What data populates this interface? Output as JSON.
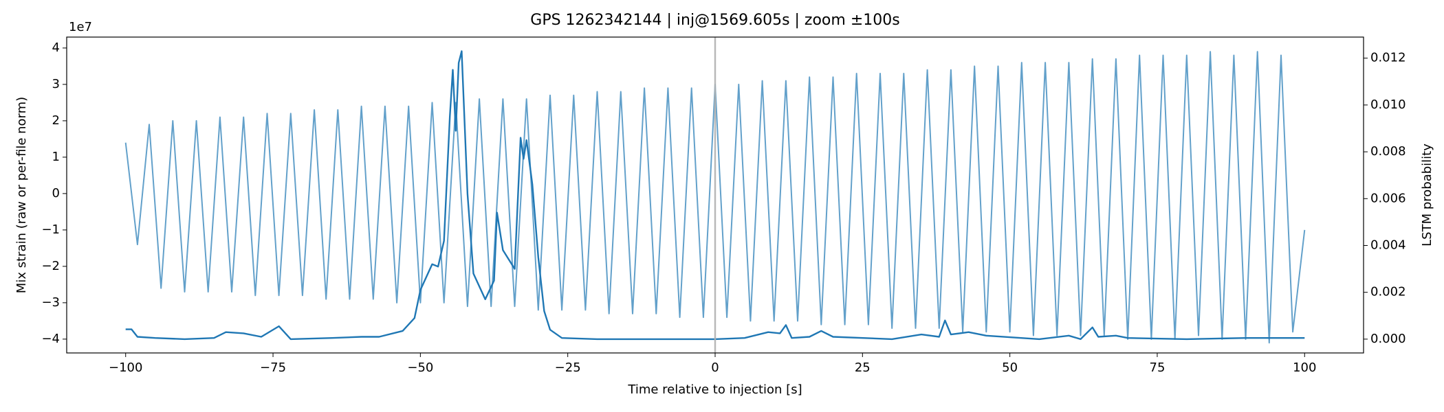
{
  "chart_data": {
    "type": "line",
    "title": "GPS 1262342144 | inj@1569.605s | zoom ±100s",
    "x_label": "Time relative to injection [s]",
    "y_label": "Mix strain (raw or per-file norm)",
    "y2_label": "LSTM probability",
    "y_offset_label": "1e7",
    "xlim": [
      -110,
      110
    ],
    "xticks": [
      {
        "value": -100,
        "label": "−100"
      },
      {
        "value": -75,
        "label": "−75"
      },
      {
        "value": -50,
        "label": "−50"
      },
      {
        "value": -25,
        "label": "−25"
      },
      0,
      25,
      50,
      75,
      100
    ],
    "ylim": [
      -4.38,
      4.3
    ],
    "yticks": [
      {
        "value": -4,
        "label": "−4"
      },
      {
        "value": -3,
        "label": "−3"
      },
      {
        "value": -2,
        "label": "−2"
      },
      {
        "value": -1,
        "label": "−1"
      },
      0,
      1,
      2,
      3,
      4
    ],
    "y2lim": [
      -0.00059,
      0.0129
    ],
    "y2ticks": [
      {
        "value": 0,
        "label": "0.000"
      },
      {
        "value": 0.002,
        "label": "0.002"
      },
      {
        "value": 0.004,
        "label": "0.004"
      },
      {
        "value": 0.006,
        "label": "0.006"
      },
      {
        "value": 0.008,
        "label": "0.008"
      },
      {
        "value": 0.01,
        "label": "0.010"
      },
      {
        "value": 0.012,
        "label": "0.012"
      }
    ],
    "vline": 0,
    "vline_color": "#b0b0b0",
    "series": [
      {
        "name": "strain",
        "color": "#1f77b4",
        "opacity": 0.7,
        "axis": "y",
        "x": [
          -100,
          -98,
          -96,
          -94,
          -92,
          -90,
          -88,
          -86,
          -84,
          -82,
          -80,
          -78,
          -76,
          -74,
          -72,
          -70,
          -68,
          -66,
          -64,
          -62,
          -60,
          -58,
          -56,
          -54,
          -52,
          -50,
          -48,
          -46,
          -44,
          -42,
          -40,
          -38,
          -36,
          -34,
          -32,
          -30,
          -28,
          -26,
          -24,
          -22,
          -20,
          -18,
          -16,
          -14,
          -12,
          -10,
          -8,
          -6,
          -4,
          -2,
          0,
          2,
          4,
          6,
          8,
          10,
          12,
          14,
          16,
          18,
          20,
          22,
          24,
          26,
          28,
          30,
          32,
          34,
          36,
          38,
          40,
          42,
          44,
          46,
          48,
          50,
          52,
          54,
          56,
          58,
          60,
          62,
          64,
          66,
          68,
          70,
          72,
          74,
          76,
          78,
          80,
          82,
          84,
          86,
          88,
          90,
          92,
          94,
          96,
          98,
          100
        ],
        "values": [
          1.4,
          -1.4,
          1.9,
          -2.6,
          2.0,
          -2.7,
          2.0,
          -2.7,
          2.1,
          -2.7,
          2.1,
          -2.8,
          2.2,
          -2.8,
          2.2,
          -2.8,
          2.3,
          -2.9,
          2.3,
          -2.9,
          2.4,
          -2.9,
          2.4,
          -3.0,
          2.4,
          -3.0,
          2.5,
          -3.0,
          2.5,
          -3.1,
          2.6,
          -3.1,
          2.6,
          -3.1,
          2.6,
          -3.2,
          2.7,
          -3.2,
          2.7,
          -3.2,
          2.8,
          -3.3,
          2.8,
          -3.3,
          2.9,
          -3.3,
          2.9,
          -3.4,
          2.9,
          -3.4,
          3.0,
          -3.4,
          3.0,
          -3.5,
          3.1,
          -3.5,
          3.1,
          -3.5,
          3.2,
          -3.6,
          3.2,
          -3.6,
          3.3,
          -3.6,
          3.3,
          -3.7,
          3.3,
          -3.7,
          3.4,
          -3.7,
          3.4,
          -3.8,
          3.5,
          -3.8,
          3.5,
          -3.8,
          3.6,
          -3.9,
          3.6,
          -3.9,
          3.6,
          -3.9,
          3.7,
          -3.9,
          3.7,
          -4.0,
          3.8,
          -4.0,
          3.8,
          -4.0,
          3.8,
          -3.9,
          3.9,
          -4.0,
          3.8,
          -4.0,
          3.9,
          -4.1,
          3.8,
          -3.8,
          -1.0
        ]
      },
      {
        "name": "LSTM probability",
        "color": "#1f77b4",
        "opacity": 1,
        "axis": "y2",
        "x": [
          -100,
          -99,
          -98,
          -95,
          -90,
          -85,
          -83,
          -80,
          -77,
          -74,
          -72,
          -65,
          -60,
          -57,
          -53,
          -51,
          -50,
          -48,
          -47,
          -46,
          -45,
          -44.5,
          -44,
          -43.5,
          -43,
          -42,
          -41,
          -39,
          -37.5,
          -37,
          -36,
          -34,
          -33,
          -32.5,
          -32,
          -31,
          -30,
          -29,
          -28,
          -26,
          -20,
          -10,
          0,
          5,
          9,
          11,
          12,
          13,
          16,
          18,
          20,
          30,
          35,
          38,
          39,
          40,
          43,
          46,
          55,
          60,
          62,
          64,
          65,
          68,
          70,
          80,
          90,
          100
        ],
        "values": [
          0.00042,
          0.00042,
          0.0001,
          5e-05,
          0.0,
          5e-05,
          0.0003,
          0.00025,
          0.0001,
          0.00055,
          0.0,
          5e-05,
          0.0001,
          0.0001,
          0.00035,
          0.0009,
          0.0021,
          0.0032,
          0.0031,
          0.0042,
          0.0095,
          0.0115,
          0.0089,
          0.0118,
          0.0123,
          0.0062,
          0.0028,
          0.0017,
          0.0025,
          0.0054,
          0.0038,
          0.003,
          0.0086,
          0.0077,
          0.0085,
          0.0066,
          0.0035,
          0.0012,
          0.0004,
          5e-05,
          0.0,
          0.0,
          0.0,
          5e-05,
          0.0003,
          0.00025,
          0.0006,
          5e-05,
          0.0001,
          0.00035,
          0.0001,
          0.0,
          0.0002,
          0.0001,
          0.0008,
          0.0002,
          0.0003,
          0.00015,
          0.0,
          0.00015,
          0.0,
          0.0005,
          0.0001,
          0.00015,
          5e-05,
          0.0,
          5e-05,
          5e-05
        ]
      }
    ]
  }
}
